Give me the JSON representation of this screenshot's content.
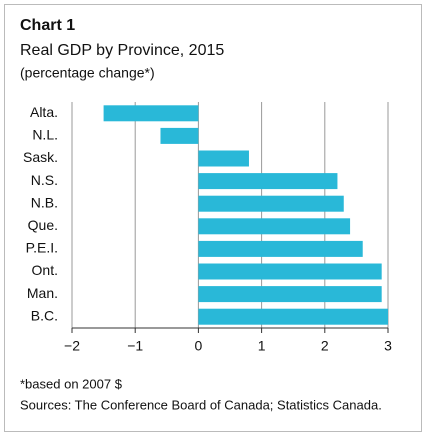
{
  "chart_data": {
    "type": "hbar",
    "title": "Chart 1",
    "subtitle": "Real GDP by Province, 2015",
    "unit_label": "(percentage change*)",
    "categories": [
      "Alta.",
      "N.L.",
      "Sask.",
      "N.S.",
      "N.B.",
      "Que.",
      "P.E.I.",
      "Ont.",
      "Man.",
      "B.C."
    ],
    "values": [
      -1.5,
      -0.6,
      0.8,
      2.2,
      2.3,
      2.4,
      2.6,
      2.9,
      2.9,
      3.0
    ],
    "color": "#29b8d8",
    "xlim": [
      -2,
      3
    ],
    "xticks": [
      {
        "value": -2,
        "label": "−2"
      },
      {
        "value": -1,
        "label": "−1"
      },
      0,
      1,
      2,
      3
    ],
    "grid": true,
    "notes": [
      "*based on 2007 $",
      "Sources: The Conference Board of Canada; Statistics Canada."
    ]
  }
}
